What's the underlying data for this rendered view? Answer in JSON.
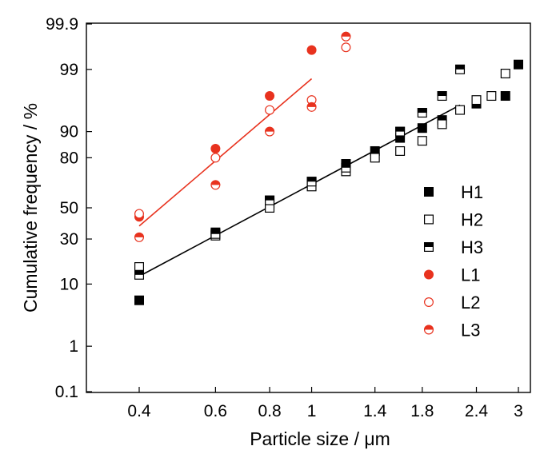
{
  "chart_data": {
    "type": "scatter",
    "xlabel": "Particle size / μm",
    "ylabel": "Cumulative frequency / %",
    "x_scale": "log",
    "y_scale": "probability",
    "xlim": [
      0.3,
      3.2
    ],
    "ylim": [
      0.1,
      99.9
    ],
    "x_ticks": [
      {
        "value": 0.4,
        "label": "0.4"
      },
      {
        "value": 0.6,
        "label": "0.6"
      },
      {
        "value": 0.8,
        "label": "0.8"
      },
      {
        "value": 1,
        "label": "1"
      },
      {
        "value": 1.4,
        "label": "1.4"
      },
      {
        "value": 1.8,
        "label": "1.8"
      },
      {
        "value": 2.4,
        "label": "2.4"
      },
      {
        "value": 3,
        "label": "3"
      }
    ],
    "y_ticks": [
      {
        "value": 0.1,
        "label": "0.1"
      },
      {
        "value": 1,
        "label": "1"
      },
      {
        "value": 10,
        "label": "10"
      },
      {
        "value": 30,
        "label": "30"
      },
      {
        "value": 50,
        "label": "50"
      },
      {
        "value": 80,
        "label": "80"
      },
      {
        "value": 90,
        "label": "90"
      },
      {
        "value": 99,
        "label": "99"
      },
      {
        "value": 99.9,
        "label": "99.9"
      }
    ],
    "grid": false,
    "legend_position": "right",
    "series": [
      {
        "name": "H1",
        "marker": "square",
        "fill": "full",
        "color": "#000000",
        "x": [
          0.4,
          0.6,
          0.8,
          1.0,
          1.2,
          1.4,
          1.6,
          1.8,
          2.0,
          2.4,
          2.8,
          3.0
        ],
        "y": [
          6,
          34,
          53,
          67,
          77,
          83,
          88,
          91,
          93,
          96,
          97,
          99.2
        ]
      },
      {
        "name": "H2",
        "marker": "square",
        "fill": "none",
        "color": "#000000",
        "x": [
          0.4,
          0.6,
          0.8,
          1.0,
          1.2,
          1.4,
          1.6,
          1.8,
          2.0,
          2.2,
          2.4,
          2.6,
          2.8
        ],
        "y": [
          16,
          32,
          50,
          64,
          73,
          80,
          83,
          87,
          92,
          95,
          96.5,
          97,
          98.8
        ]
      },
      {
        "name": "H3",
        "marker": "square",
        "fill": "half",
        "color": "#000000",
        "x": [
          0.4,
          0.6,
          0.8,
          1.0,
          1.2,
          1.6,
          1.8,
          2.0,
          2.2
        ],
        "y": [
          13,
          33,
          55,
          67,
          75,
          90,
          94.5,
          97,
          99
        ]
      },
      {
        "name": "L1",
        "marker": "circle",
        "fill": "full",
        "color": "#e8321e",
        "x": [
          0.4,
          0.6,
          0.8,
          1.0
        ],
        "y": [
          44,
          84,
          97,
          99.6
        ]
      },
      {
        "name": "L2",
        "marker": "circle",
        "fill": "none",
        "color": "#e8321e",
        "x": [
          0.4,
          0.6,
          0.8,
          1.0,
          1.2
        ],
        "y": [
          46,
          80,
          95,
          96.5,
          99.65
        ]
      },
      {
        "name": "L3",
        "marker": "circle",
        "fill": "half",
        "color": "#e8321e",
        "x": [
          0.4,
          0.6,
          0.8,
          1.0,
          1.2
        ],
        "y": [
          31,
          65,
          90,
          95.5,
          99.8
        ]
      }
    ],
    "fit_lines": [
      {
        "color": "#000000",
        "x": [
          0.4,
          2.2
        ],
        "y": [
          12.5,
          95.8
        ]
      },
      {
        "color": "#e8321e",
        "x": [
          0.4,
          1.0
        ],
        "y": [
          38,
          98.5
        ]
      }
    ]
  }
}
